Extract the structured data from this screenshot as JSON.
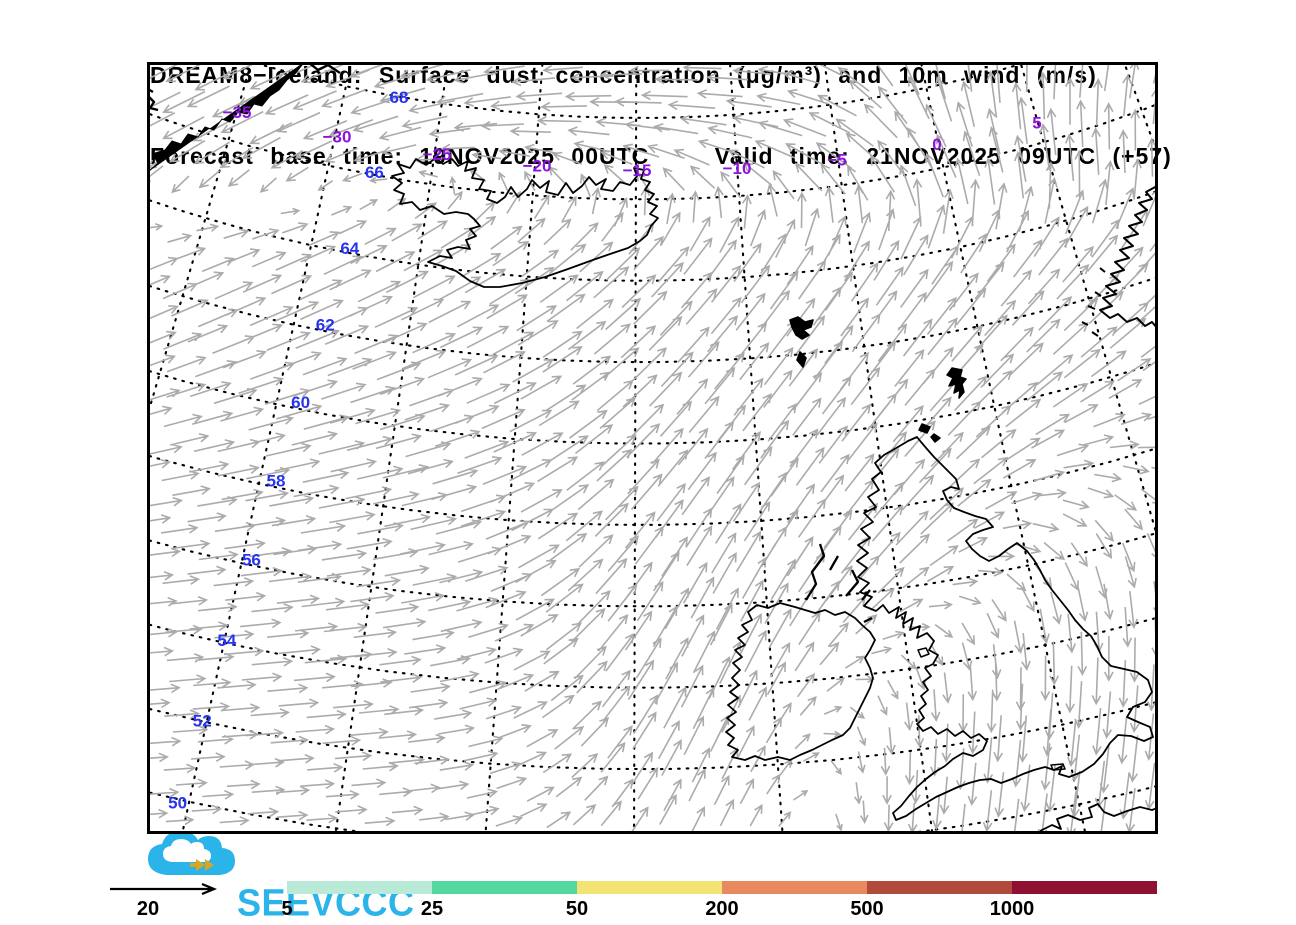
{
  "header": {
    "title_line1": "DREAM8−Iceland: Surface dust concentration (μg/m³) and 10m wind (m/s)",
    "title_line2": "Forecast base time: 19NOV2025 00UTC    Valid time: 21NOV2025 09UTC (+57)"
  },
  "map": {
    "longitude_labels": [
      "−35",
      "−30",
      "−25",
      "−20",
      "−15",
      "−10",
      "−5",
      "0",
      "5"
    ],
    "latitude_labels": [
      "68",
      "66",
      "64",
      "62",
      "60",
      "58",
      "56",
      "54",
      "52",
      "50"
    ],
    "longitude_color": "#8c12dd",
    "latitude_color": "#2733f2",
    "coastline_color": "#000000",
    "wind_arrow_color": "#ababab",
    "graticule_color": "#000000"
  },
  "legend": {
    "wind_reference": {
      "label": "20"
    },
    "colorbar": {
      "ticks": [
        "5",
        "25",
        "50",
        "200",
        "500",
        "1000"
      ],
      "segment_colors": [
        "#b9e9d7",
        "#55d7a0",
        "#f2e373",
        "#e98960",
        "#b04b3c",
        "#8e1134"
      ]
    }
  },
  "branding": {
    "logo_text": "SEEVCCC",
    "logo_color": "#2ab4ea",
    "logo_accent": "#d8a71e"
  }
}
